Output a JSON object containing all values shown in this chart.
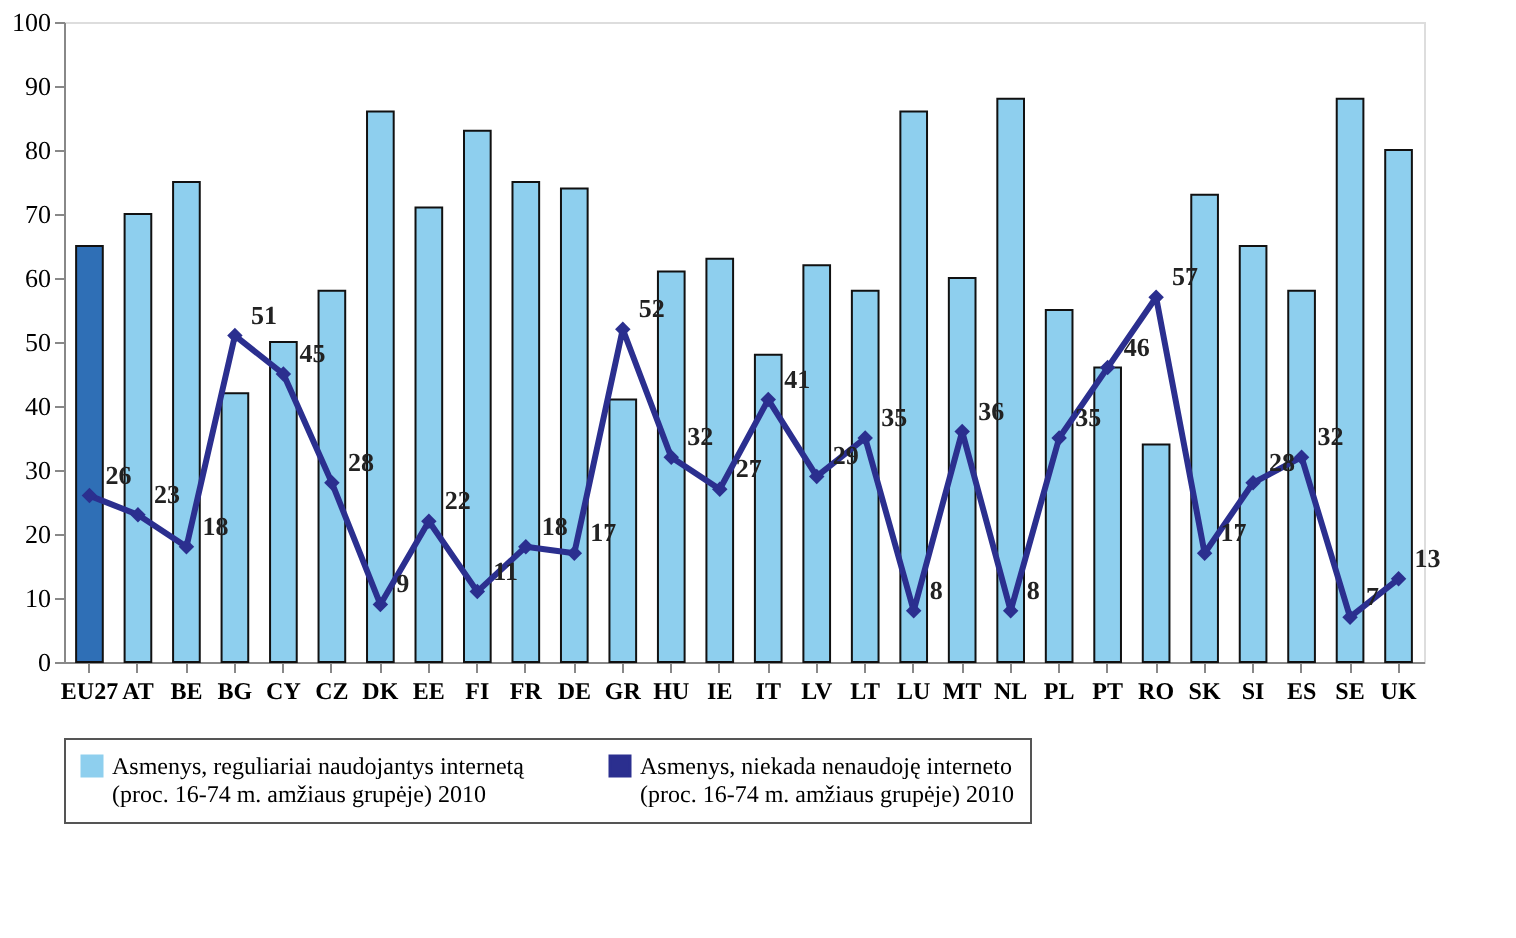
{
  "chart_data": {
    "type": "bar",
    "categories": [
      "EU27",
      "AT",
      "BE",
      "BG",
      "CY",
      "CZ",
      "DK",
      "EE",
      "FI",
      "FR",
      "DE",
      "GR",
      "HU",
      "IE",
      "IT",
      "LV",
      "LT",
      "LU",
      "MT",
      "NL",
      "PL",
      "PT",
      "RO",
      "SK",
      "SI",
      "ES",
      "SE",
      "UK"
    ],
    "series": [
      {
        "name": "Asmenys, reguliariai naudojantys internetą\n(proc. 16-74 m. amžiaus grupėje) 2010",
        "color": "#8ecfee",
        "colors": [
          "#2f6fb6",
          "#8ecfee",
          "#8ecfee",
          "#8ecfee",
          "#8ecfee",
          "#8ecfee",
          "#8ecfee",
          "#8ecfee",
          "#8ecfee",
          "#8ecfee",
          "#8ecfee",
          "#8ecfee",
          "#8ecfee",
          "#8ecfee",
          "#8ecfee",
          "#8ecfee",
          "#8ecfee",
          "#8ecfee",
          "#8ecfee",
          "#8ecfee",
          "#8ecfee",
          "#8ecfee",
          "#8ecfee",
          "#8ecfee",
          "#8ecfee",
          "#8ecfee",
          "#8ecfee",
          "#8ecfee"
        ],
        "values": [
          65,
          70,
          75,
          42,
          50,
          58,
          86,
          71,
          83,
          75,
          74,
          41,
          61,
          63,
          48,
          62,
          58,
          86,
          60,
          88,
          55,
          46,
          34,
          73,
          65,
          58,
          88,
          80
        ]
      },
      {
        "type": "line",
        "name": "Asmenys, niekada nenaudoję interneto\n(proc. 16-74 m. amžiaus grupėje) 2010",
        "color": "#2b2f8f",
        "marker": "diamond",
        "line_style": "solid",
        "values": [
          26,
          23,
          18,
          51,
          45,
          28,
          9,
          22,
          11,
          18,
          17,
          52,
          32,
          27,
          41,
          29,
          35,
          8,
          36,
          8,
          35,
          46,
          57,
          17,
          28,
          32,
          7,
          13
        ],
        "value_labels": [
          "26",
          "23",
          "18",
          "51",
          "45",
          "28",
          "9",
          "22",
          "11",
          "18",
          "17",
          "52",
          "32",
          "27",
          "41",
          "29",
          "35",
          "8",
          "36",
          "8",
          "35",
          "46",
          "57",
          "17",
          "28",
          "32",
          "7",
          "13"
        ]
      }
    ],
    "ylim": [
      0,
      100
    ],
    "yticks": [
      0,
      10,
      20,
      30,
      40,
      50,
      60,
      70,
      80,
      90,
      100
    ],
    "grid": false,
    "legend": "bottom"
  }
}
